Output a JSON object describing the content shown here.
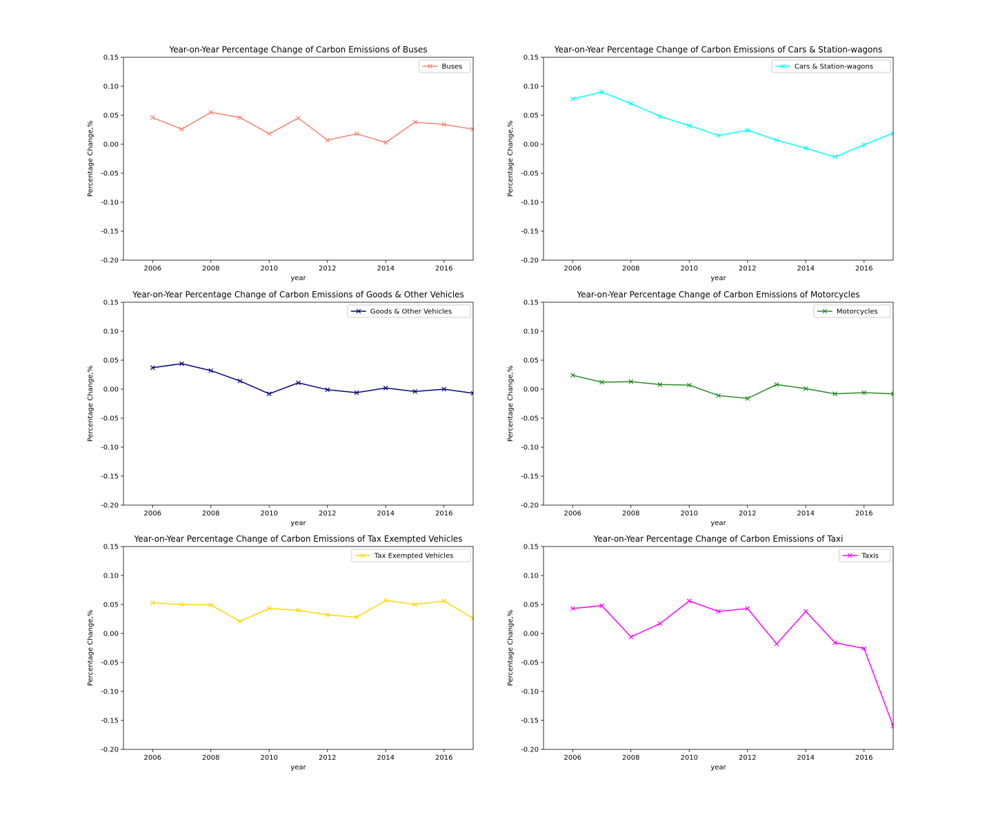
{
  "chart_data": [
    {
      "type": "line",
      "title": "Year-on-Year Percentage Change of Carbon Emissions of Buses",
      "xlabel": "year",
      "ylabel": "Percentage Change,%",
      "xlim": [
        2005,
        2017
      ],
      "ylim": [
        -0.2,
        0.15
      ],
      "xticks": [
        2006,
        2008,
        2010,
        2012,
        2014,
        2016
      ],
      "yticks": [
        -0.2,
        -0.15,
        -0.1,
        -0.05,
        0.0,
        0.05,
        0.1,
        0.15
      ],
      "grid": false,
      "legend_position": "top-right",
      "series": [
        {
          "name": "Buses",
          "color": "#fa8072",
          "marker": "x",
          "x": [
            2006,
            2007,
            2008,
            2009,
            2010,
            2011,
            2012,
            2013,
            2014,
            2015,
            2016,
            2017
          ],
          "y": [
            0.046,
            0.026,
            0.055,
            0.046,
            0.018,
            0.045,
            0.007,
            0.018,
            0.003,
            0.038,
            0.034,
            0.026
          ]
        }
      ]
    },
    {
      "type": "line",
      "title": "Year-on-Year Percentage Change of Carbon Emissions of Cars & Station-wagons",
      "xlabel": "year",
      "ylabel": "Percentage Change,%",
      "xlim": [
        2005,
        2017
      ],
      "ylim": [
        -0.2,
        0.15
      ],
      "xticks": [
        2006,
        2008,
        2010,
        2012,
        2014,
        2016
      ],
      "yticks": [
        -0.2,
        -0.15,
        -0.1,
        -0.05,
        0.0,
        0.05,
        0.1,
        0.15
      ],
      "grid": false,
      "legend_position": "top-right",
      "series": [
        {
          "name": "Cars & Station-wagons",
          "color": "#00ffff",
          "marker": "x",
          "x": [
            2006,
            2007,
            2008,
            2009,
            2010,
            2011,
            2012,
            2013,
            2014,
            2015,
            2016,
            2017
          ],
          "y": [
            0.078,
            0.09,
            0.07,
            0.048,
            0.032,
            0.015,
            0.024,
            0.007,
            -0.007,
            -0.022,
            -0.001,
            0.019
          ]
        }
      ]
    },
    {
      "type": "line",
      "title": "Year-on-Year Percentage Change of Carbon Emissions of Goods & Other Vehicles",
      "xlabel": "year",
      "ylabel": "Percentage Change,%",
      "xlim": [
        2005,
        2017
      ],
      "ylim": [
        -0.2,
        0.15
      ],
      "xticks": [
        2006,
        2008,
        2010,
        2012,
        2014,
        2016
      ],
      "yticks": [
        -0.2,
        -0.15,
        -0.1,
        -0.05,
        0.0,
        0.05,
        0.1,
        0.15
      ],
      "grid": false,
      "legend_position": "top-right",
      "series": [
        {
          "name": "Goods & Other Vehicles",
          "color": "#000080",
          "marker": "x",
          "x": [
            2006,
            2007,
            2008,
            2009,
            2010,
            2011,
            2012,
            2013,
            2014,
            2015,
            2016,
            2017
          ],
          "y": [
            0.037,
            0.044,
            0.032,
            0.014,
            -0.008,
            0.011,
            -0.001,
            -0.006,
            0.002,
            -0.004,
            0.0,
            -0.007
          ]
        }
      ]
    },
    {
      "type": "line",
      "title": "Year-on-Year Percentage Change of Carbon Emissions of Motorcycles",
      "xlabel": "year",
      "ylabel": "Percentage Change,%",
      "xlim": [
        2005,
        2017
      ],
      "ylim": [
        -0.2,
        0.15
      ],
      "xticks": [
        2006,
        2008,
        2010,
        2012,
        2014,
        2016
      ],
      "yticks": [
        -0.2,
        -0.15,
        -0.1,
        -0.05,
        0.0,
        0.05,
        0.1,
        0.15
      ],
      "grid": false,
      "legend_position": "top-right",
      "series": [
        {
          "name": "Motorcycles",
          "color": "#228b22",
          "marker": "x",
          "x": [
            2006,
            2007,
            2008,
            2009,
            2010,
            2011,
            2012,
            2013,
            2014,
            2015,
            2016,
            2017
          ],
          "y": [
            0.024,
            0.012,
            0.013,
            0.008,
            0.007,
            -0.011,
            -0.016,
            0.008,
            0.001,
            -0.008,
            -0.006,
            -0.008
          ]
        }
      ]
    },
    {
      "type": "line",
      "title": "Year-on-Year Percentage Change of Carbon Emissions of Tax Exempted Vehicles",
      "xlabel": "year",
      "ylabel": "Percentage Change,%",
      "xlim": [
        2005,
        2017
      ],
      "ylim": [
        -0.2,
        0.15
      ],
      "xticks": [
        2006,
        2008,
        2010,
        2012,
        2014,
        2016
      ],
      "yticks": [
        -0.2,
        -0.15,
        -0.1,
        -0.05,
        0.0,
        0.05,
        0.1,
        0.15
      ],
      "grid": false,
      "legend_position": "top-right",
      "series": [
        {
          "name": "Tax Exempted Vehicles",
          "color": "#ffd700",
          "marker": "x",
          "x": [
            2006,
            2007,
            2008,
            2009,
            2010,
            2011,
            2012,
            2013,
            2014,
            2015,
            2016,
            2017
          ],
          "y": [
            0.053,
            0.05,
            0.049,
            0.021,
            0.043,
            0.04,
            0.032,
            0.028,
            0.057,
            0.05,
            0.056,
            0.026
          ]
        }
      ]
    },
    {
      "type": "line",
      "title": "Year-on-Year Percentage Change of Carbon Emissions of Taxi",
      "xlabel": "year",
      "ylabel": "Percentage Change,%",
      "xlim": [
        2005,
        2017
      ],
      "ylim": [
        -0.2,
        0.15
      ],
      "xticks": [
        2006,
        2008,
        2010,
        2012,
        2014,
        2016
      ],
      "yticks": [
        -0.2,
        -0.15,
        -0.1,
        -0.05,
        0.0,
        0.05,
        0.1,
        0.15
      ],
      "grid": false,
      "legend_position": "top-right",
      "series": [
        {
          "name": "Taxis",
          "color": "#ff00ff",
          "marker": "x",
          "x": [
            2006,
            2007,
            2008,
            2009,
            2010,
            2011,
            2012,
            2013,
            2014,
            2015,
            2016,
            2017
          ],
          "y": [
            0.043,
            0.048,
            -0.006,
            0.017,
            0.056,
            0.038,
            0.043,
            -0.018,
            0.038,
            -0.016,
            -0.026,
            -0.16
          ]
        }
      ]
    }
  ]
}
